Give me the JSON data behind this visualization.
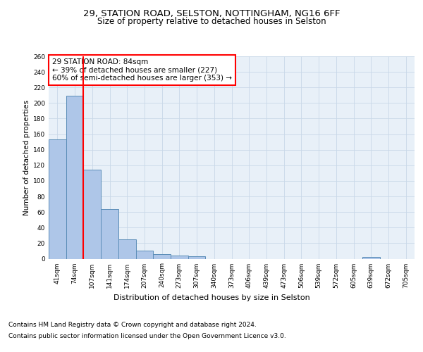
{
  "title_line1": "29, STATION ROAD, SELSTON, NOTTINGHAM, NG16 6FF",
  "title_line2": "Size of property relative to detached houses in Selston",
  "xlabel": "Distribution of detached houses by size in Selston",
  "ylabel": "Number of detached properties",
  "categories": [
    "41sqm",
    "74sqm",
    "107sqm",
    "141sqm",
    "174sqm",
    "207sqm",
    "240sqm",
    "273sqm",
    "307sqm",
    "340sqm",
    "373sqm",
    "406sqm",
    "439sqm",
    "473sqm",
    "506sqm",
    "539sqm",
    "572sqm",
    "605sqm",
    "639sqm",
    "672sqm",
    "705sqm"
  ],
  "values": [
    153,
    209,
    114,
    64,
    25,
    10,
    6,
    4,
    3,
    0,
    0,
    0,
    0,
    0,
    0,
    0,
    0,
    0,
    2,
    0,
    0
  ],
  "bar_color": "#aec6e8",
  "bar_edge_color": "#5b8db8",
  "property_line_x": 1.5,
  "annotation_text": "29 STATION ROAD: 84sqm\n← 39% of detached houses are smaller (227)\n60% of semi-detached houses are larger (353) →",
  "annotation_box_color": "white",
  "annotation_box_edge_color": "red",
  "red_line_color": "red",
  "ylim": [
    0,
    260
  ],
  "yticks": [
    0,
    20,
    40,
    60,
    80,
    100,
    120,
    140,
    160,
    180,
    200,
    220,
    240,
    260
  ],
  "grid_color": "#c8d8e8",
  "bg_color": "#e8f0f8",
  "footer_line1": "Contains HM Land Registry data © Crown copyright and database right 2024.",
  "footer_line2": "Contains public sector information licensed under the Open Government Licence v3.0.",
  "title_fontsize": 9.5,
  "subtitle_fontsize": 8.5,
  "xlabel_fontsize": 8,
  "ylabel_fontsize": 7.5,
  "tick_fontsize": 6.5,
  "annotation_fontsize": 7.5,
  "footer_fontsize": 6.5
}
